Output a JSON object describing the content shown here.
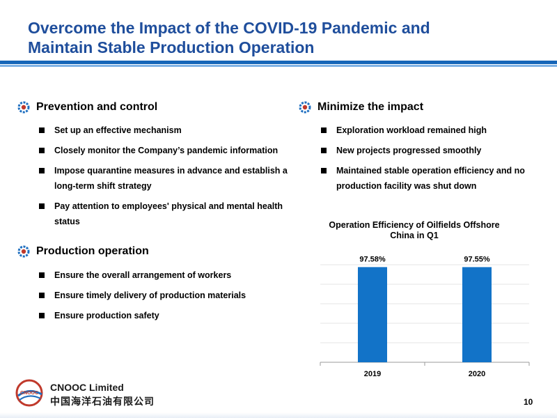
{
  "title": {
    "line1": "Overcome the Impact of the COVID-19 Pandemic and",
    "line2": "Maintain Stable Production Operation"
  },
  "sections": {
    "prevention": {
      "heading": "Prevention and control",
      "items": [
        "Set up an effective mechanism",
        "Closely monitor the Company’s pandemic information",
        "Impose quarantine measures in advance and establish a long-term shift strategy",
        "Pay attention to employees' physical and mental health status"
      ]
    },
    "production": {
      "heading": "Production operation",
      "items": [
        "Ensure the overall arrangement of workers",
        "Ensure timely delivery of production materials",
        "Ensure production safety"
      ]
    },
    "minimize": {
      "heading": "Minimize the impact",
      "items": [
        "Exploration workload remained high",
        "New projects progressed smoothly",
        "Maintained stable operation efficiency and no production facility was shut down"
      ]
    }
  },
  "chart_data": {
    "type": "bar",
    "title": "Operation Efficiency of Oilfields Offshore China in Q1",
    "categories": [
      "2019",
      "2020"
    ],
    "values": [
      97.58,
      97.55
    ],
    "data_labels": [
      "97.58%",
      "97.55%"
    ],
    "ylim": [
      0,
      100
    ],
    "grid": true,
    "bar_color": "#1273c8"
  },
  "footer": {
    "company_en": "CNOOC Limited",
    "company_cn": "中国海洋石油有限公司",
    "logo_text": "CNOOC",
    "page_number": "10"
  },
  "colors": {
    "title": "#1f4e9c",
    "rule_dark": "#1565b8",
    "rule_light": "#7fb2e5",
    "icon": "#1f6fc0"
  }
}
